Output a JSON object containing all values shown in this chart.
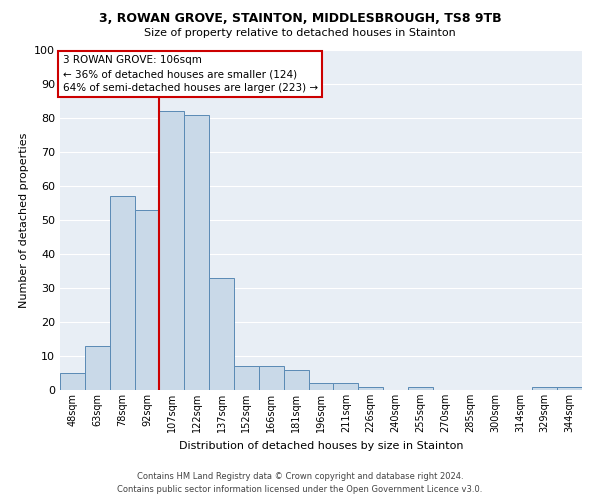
{
  "title1": "3, ROWAN GROVE, STAINTON, MIDDLESBROUGH, TS8 9TB",
  "title2": "Size of property relative to detached houses in Stainton",
  "xlabel": "Distribution of detached houses by size in Stainton",
  "ylabel": "Number of detached properties",
  "bar_labels": [
    "48sqm",
    "63sqm",
    "78sqm",
    "92sqm",
    "107sqm",
    "122sqm",
    "137sqm",
    "152sqm",
    "166sqm",
    "181sqm",
    "196sqm",
    "211sqm",
    "226sqm",
    "240sqm",
    "255sqm",
    "270sqm",
    "285sqm",
    "300sqm",
    "314sqm",
    "329sqm",
    "344sqm"
  ],
  "bar_values": [
    5,
    13,
    57,
    53,
    82,
    81,
    33,
    7,
    7,
    6,
    2,
    2,
    1,
    0,
    1,
    0,
    0,
    0,
    0,
    1,
    1
  ],
  "bar_color": "#c9d9e8",
  "bar_edge_color": "#5a8ab5",
  "vline_color": "#cc0000",
  "vline_x_index": 3.5,
  "annotation_text": "3 ROWAN GROVE: 106sqm\n← 36% of detached houses are smaller (124)\n64% of semi-detached houses are larger (223) →",
  "annotation_box_facecolor": "#ffffff",
  "annotation_box_edgecolor": "#cc0000",
  "ylim": [
    0,
    100
  ],
  "yticks": [
    0,
    10,
    20,
    30,
    40,
    50,
    60,
    70,
    80,
    90,
    100
  ],
  "bg_color": "#e8eef5",
  "grid_color": "#ffffff",
  "footer1": "Contains HM Land Registry data © Crown copyright and database right 2024.",
  "footer2": "Contains public sector information licensed under the Open Government Licence v3.0."
}
